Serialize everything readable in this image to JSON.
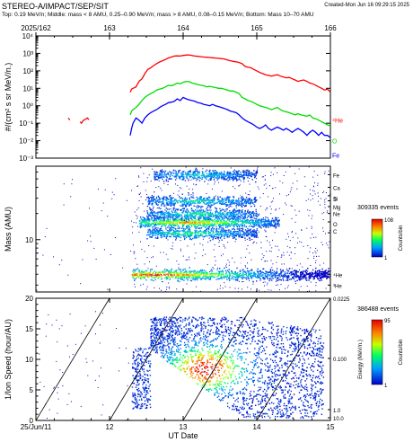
{
  "header": {
    "title": "STEREO-A/IMPACT/SEP/SIT",
    "created": "Created-Mon Jun 16 09:29:15 2025",
    "subtitle": "Top: 0.19 MeV/n; Middle: mass < 8 AMU, 0.25–0.90 MeV/n; mass > 8 AMU, 0.08–0.15 MeV/n; Bottom: Mass 10–70 AMU"
  },
  "colors": {
    "he": "#ff0000",
    "o": "#00dd00",
    "fe": "#0000ff"
  },
  "chart_data": [
    {
      "type": "line",
      "ylabel": "#/(cm² s sr MeV/n.)",
      "top_axis": {
        "labels": [
          "2025/162",
          "163",
          "164",
          "165",
          "166"
        ],
        "values": [
          11.0,
          12.0,
          13.0,
          14.0,
          15.0
        ]
      },
      "xlim": [
        11.0,
        15.0
      ],
      "ylim": [
        0.001,
        10000
      ],
      "yscale": "log",
      "ytick_labels": [
        "10⁻³",
        "10⁻²",
        "10⁻¹",
        "10⁰",
        "10¹",
        "10²",
        "10³",
        "10⁴"
      ],
      "series": [
        {
          "name": "⁴He",
          "color": "#ff0000",
          "x": [
            11.44,
            11.46,
            11.6,
            11.62,
            11.64,
            11.7,
            11.72,
            12.28,
            12.3,
            12.32,
            12.36,
            12.4,
            12.44,
            12.48,
            12.52,
            12.56,
            12.6,
            12.64,
            12.68,
            12.72,
            12.76,
            12.8,
            12.84,
            12.88,
            12.92,
            12.96,
            13.0,
            13.04,
            13.08,
            13.12,
            13.16,
            13.2,
            13.24,
            13.28,
            13.32,
            13.36,
            13.4,
            13.44,
            13.48,
            13.52,
            13.56,
            13.6,
            13.64,
            13.68,
            13.72,
            13.76,
            13.8,
            13.84,
            13.88,
            13.92,
            13.96,
            14.0,
            14.04,
            14.08,
            14.12,
            14.16,
            14.2,
            14.24,
            14.28,
            14.32,
            14.36,
            14.4,
            14.44,
            14.48,
            14.52,
            14.56,
            14.6,
            14.64,
            14.68,
            14.72,
            14.76,
            14.8,
            14.84,
            14.88,
            14.92,
            14.96,
            15.0
          ],
          "y": [
            0.2,
            0.15,
            0.12,
            0.1,
            0.14,
            0.2,
            0.16,
            6,
            9,
            10,
            12,
            25,
            35,
            70,
            120,
            150,
            200,
            260,
            320,
            380,
            450,
            550,
            620,
            700,
            720,
            700,
            760,
            800,
            820,
            760,
            700,
            680,
            650,
            620,
            600,
            580,
            560,
            540,
            520,
            500,
            480,
            420,
            380,
            350,
            330,
            300,
            260,
            180,
            160,
            150,
            120,
            100,
            80,
            70,
            60,
            55,
            50,
            55,
            60,
            50,
            45,
            40,
            42,
            35,
            30,
            25,
            28,
            30,
            25,
            20,
            18,
            15,
            12,
            10,
            8,
            9,
            6
          ]
        },
        {
          "name": "O",
          "color": "#00dd00",
          "x": [
            12.28,
            12.3,
            12.32,
            12.36,
            12.4,
            12.44,
            12.48,
            12.52,
            12.56,
            12.6,
            12.64,
            12.68,
            12.72,
            12.76,
            12.8,
            12.84,
            12.88,
            12.92,
            12.96,
            13.0,
            13.04,
            13.08,
            13.12,
            13.16,
            13.2,
            13.24,
            13.28,
            13.32,
            13.36,
            13.4,
            13.44,
            13.48,
            13.52,
            13.56,
            13.6,
            13.64,
            13.68,
            13.72,
            13.76,
            13.8,
            13.84,
            13.88,
            13.92,
            13.96,
            14.0,
            14.04,
            14.08,
            14.12,
            14.16,
            14.2,
            14.24,
            14.28,
            14.32,
            14.36,
            14.4,
            14.44,
            14.48,
            14.52,
            14.56,
            14.6,
            14.64,
            14.68,
            14.72,
            14.76,
            14.8,
            14.84,
            14.88,
            14.92,
            14.96,
            15.0
          ],
          "y": [
            0.3,
            0.5,
            0.6,
            0.8,
            1.2,
            2,
            3,
            4,
            5,
            6,
            8,
            9,
            10,
            12,
            15,
            14,
            16,
            20,
            18,
            22,
            25,
            24,
            20,
            18,
            16,
            15,
            14,
            12,
            13,
            12,
            11,
            10,
            10,
            9,
            8,
            7,
            7,
            6,
            5,
            3,
            2.5,
            2,
            1.8,
            1.5,
            1.2,
            1,
            0.9,
            0.8,
            0.7,
            0.6,
            0.7,
            0.8,
            0.6,
            0.5,
            0.45,
            0.4,
            0.35,
            0.3,
            0.35,
            0.3,
            0.28,
            0.25,
            0.3,
            0.2,
            0.18,
            0.15,
            0.12,
            0.1,
            0.08,
            0.07
          ]
        },
        {
          "name": "Fe",
          "color": "#0000ff",
          "x": [
            12.28,
            12.3,
            12.32,
            12.36,
            12.4,
            12.44,
            12.48,
            12.52,
            12.56,
            12.6,
            12.64,
            12.68,
            12.72,
            12.76,
            12.8,
            12.84,
            12.88,
            12.92,
            12.96,
            13.0,
            13.04,
            13.08,
            13.12,
            13.16,
            13.2,
            13.24,
            13.28,
            13.32,
            13.36,
            13.4,
            13.44,
            13.48,
            13.52,
            13.56,
            13.6,
            13.64,
            13.68,
            13.72,
            13.76,
            13.8,
            13.84,
            13.88,
            13.92,
            13.96,
            14.0,
            14.04,
            14.08,
            14.12,
            14.16,
            14.2,
            14.24,
            14.28,
            14.32,
            14.36,
            14.4,
            14.44,
            14.48,
            14.52,
            14.56,
            14.6,
            14.64,
            14.68,
            14.72,
            14.76,
            14.8,
            14.84,
            14.88,
            14.92,
            14.96,
            15.0
          ],
          "y": [
            0.02,
            0.05,
            0.1,
            0.2,
            0.15,
            0.1,
            0.2,
            0.3,
            0.4,
            0.5,
            0.6,
            0.8,
            1,
            1.2,
            1.5,
            1.6,
            1.8,
            2.5,
            2,
            3,
            2.5,
            2.2,
            2,
            1.8,
            1.5,
            1.4,
            1.2,
            1.1,
            1,
            1.2,
            1,
            0.9,
            0.8,
            0.7,
            0.6,
            0.5,
            0.45,
            0.4,
            0.3,
            0.2,
            0.15,
            0.12,
            0.1,
            0.08,
            0.06,
            0.05,
            0.06,
            0.08,
            0.05,
            0.04,
            0.05,
            0.06,
            0.05,
            0.04,
            0.05,
            0.04,
            0.03,
            0.04,
            0.05,
            0.04,
            0.03,
            0.02,
            0.03,
            0.04,
            0.03,
            0.02,
            0.03,
            0.02,
            0.02,
            0.015
          ]
        }
      ],
      "series_labels": [
        "⁴He",
        "O",
        "Fe"
      ]
    },
    {
      "type": "heatmap",
      "ylabel": "Mass (AMU)",
      "yscale": "log",
      "ytick_labels": [
        "10"
      ],
      "xlim": [
        11.0,
        15.0
      ],
      "ylim": [
        2.5,
        70
      ],
      "species_labels": [
        "Fe",
        "Ca",
        "Si",
        "S",
        "Mg",
        "Ne",
        "O",
        "C",
        "⁴He",
        "³He"
      ],
      "species_mass": [
        56,
        40,
        28,
        32,
        24,
        20,
        16,
        12,
        4,
        3
      ],
      "colorbar": {
        "title": "309335 events",
        "label": "Counts/bin",
        "min": 1,
        "max": 108
      },
      "bands": [
        {
          "mass": 4,
          "start": 12.3,
          "end": 15.0,
          "peak": 12.6,
          "intensity": 1.0
        },
        {
          "mass": 16,
          "start": 12.4,
          "end": 14.3,
          "peak": 13.1,
          "intensity": 0.85
        },
        {
          "mass": 12,
          "start": 12.5,
          "end": 14.0,
          "peak": 13.1,
          "intensity": 0.5
        },
        {
          "mass": 20,
          "start": 12.5,
          "end": 14.0,
          "peak": 13.2,
          "intensity": 0.45
        },
        {
          "mass": 28,
          "start": 12.5,
          "end": 14.0,
          "peak": 13.2,
          "intensity": 0.4
        },
        {
          "mass": 56,
          "start": 12.6,
          "end": 14.0,
          "peak": 13.2,
          "intensity": 0.35
        }
      ]
    },
    {
      "type": "heatmap",
      "xlabel": "UT Date",
      "ylabel": "1/Ion Speed (hour/AU)",
      "right_ylabel": "Energy (MeV/n.)",
      "xtick_labels": [
        "25/Jun/11",
        "12",
        "13",
        "14",
        "15"
      ],
      "xtick_values": [
        11.0,
        12.0,
        13.0,
        14.0,
        15.0
      ],
      "xlim": [
        11.0,
        15.0
      ],
      "ylim": [
        0,
        20
      ],
      "ytick_labels": [
        "0",
        "5",
        "10",
        "15",
        "20"
      ],
      "right_tick_labels": [
        "0.0225",
        "0.100",
        "1.0",
        "10.0"
      ],
      "colorbar": {
        "title": "386488 events",
        "label": "Counts/bin",
        "min": 1,
        "max": 95
      }
    }
  ]
}
